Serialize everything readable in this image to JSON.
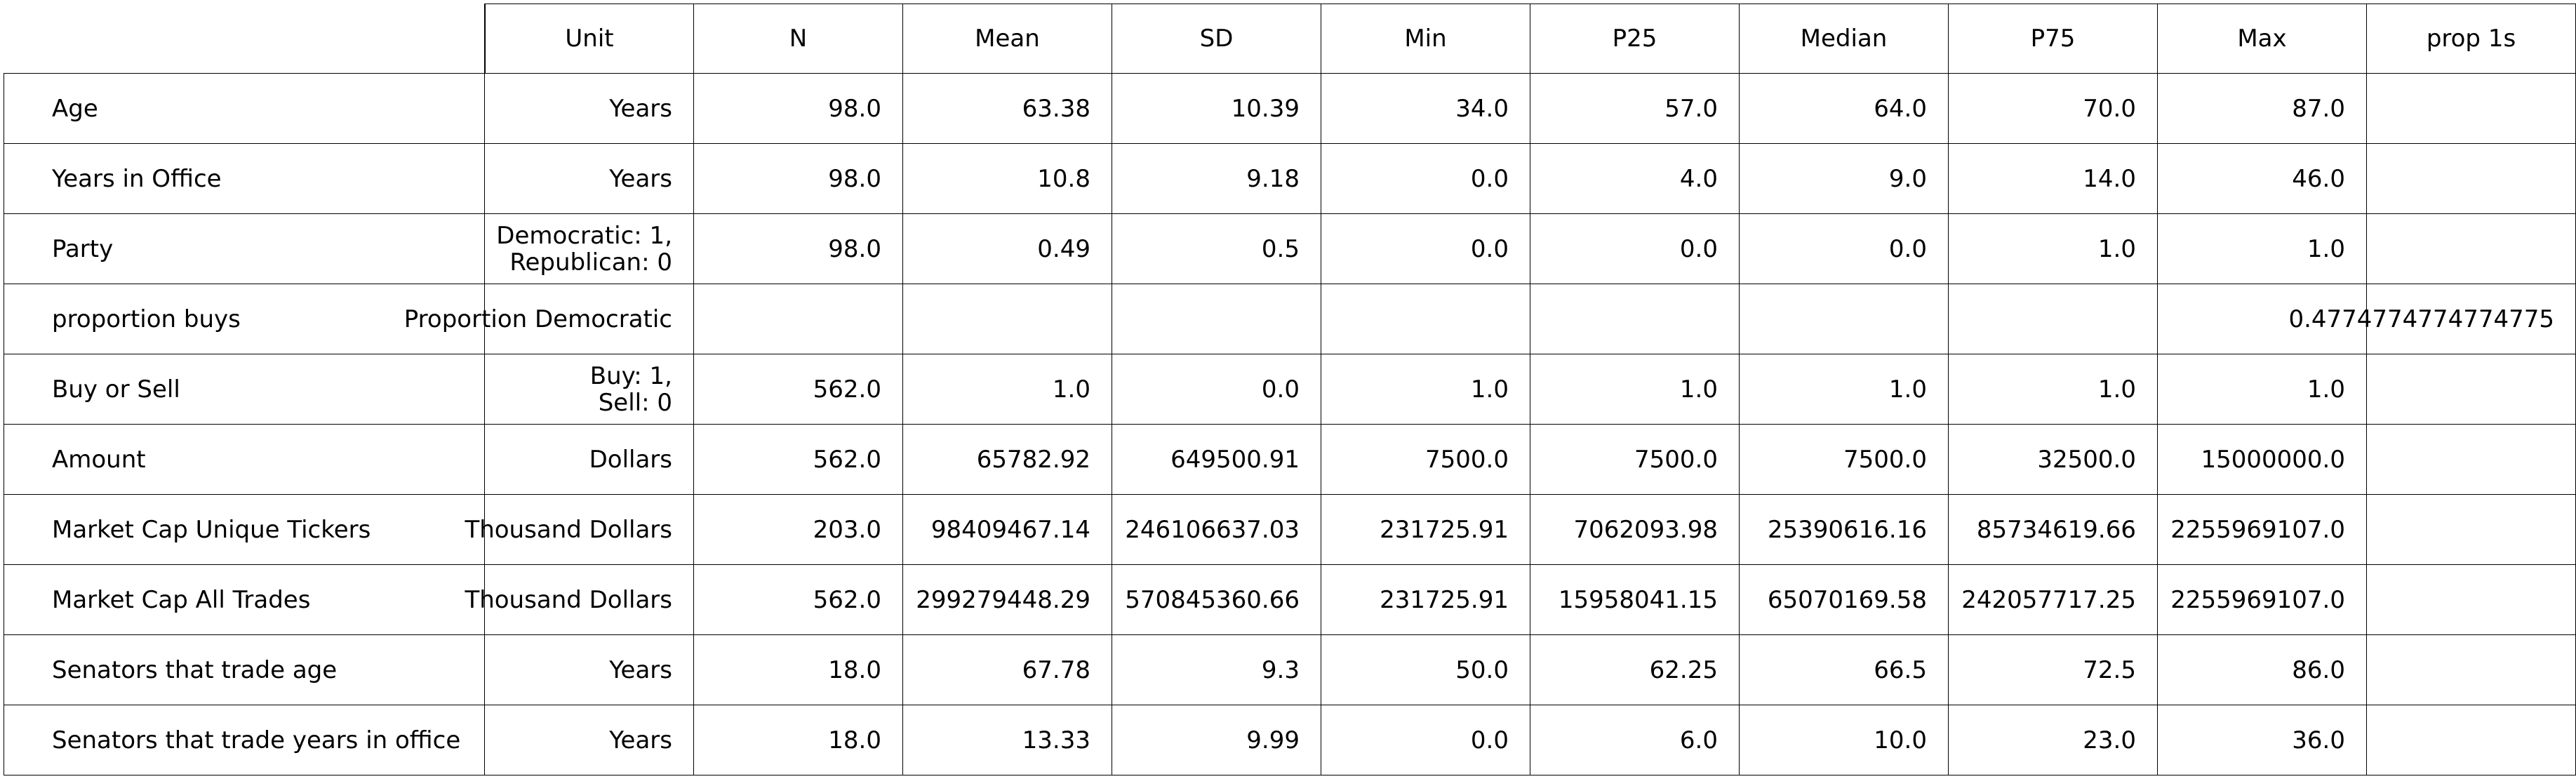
{
  "table": {
    "headers": [
      "Unit",
      "N",
      "Mean",
      "SD",
      "Min",
      "P25",
      "Median",
      "P75",
      "Max",
      "prop 1s"
    ],
    "rows": [
      {
        "label": "Age",
        "unit": "Years",
        "values": [
          "98.0",
          "63.38",
          "10.39",
          "34.0",
          "57.0",
          "64.0",
          "70.0",
          "87.0",
          ""
        ]
      },
      {
        "label": "Years in Office",
        "unit": "Years",
        "values": [
          "98.0",
          "10.8",
          "9.18",
          "0.0",
          "4.0",
          "9.0",
          "14.0",
          "46.0",
          ""
        ]
      },
      {
        "label": "Party",
        "unit": "Democratic: 1,\nRepublican: 0",
        "values": [
          "98.0",
          "0.49",
          "0.5",
          "0.0",
          "0.0",
          "0.0",
          "1.0",
          "1.0",
          ""
        ]
      },
      {
        "label": "proportion buys",
        "unit": "Proportion Democratic",
        "values": [
          "",
          "",
          "",
          "",
          "",
          "",
          "",
          "",
          "0.4774774774774775"
        ]
      },
      {
        "label": "Buy or Sell",
        "unit": "Buy: 1,\nSell: 0",
        "values": [
          "562.0",
          "1.0",
          "0.0",
          "1.0",
          "1.0",
          "1.0",
          "1.0",
          "1.0",
          ""
        ]
      },
      {
        "label": "Amount",
        "unit": "Dollars",
        "values": [
          "562.0",
          "65782.92",
          "649500.91",
          "7500.0",
          "7500.0",
          "7500.0",
          "32500.0",
          "15000000.0",
          ""
        ]
      },
      {
        "label": "Market Cap Unique Tickers",
        "unit": "Thousand Dollars",
        "values": [
          "203.0",
          "98409467.14",
          "246106637.03",
          "231725.91",
          "7062093.98",
          "25390616.16",
          "85734619.66",
          "2255969107.0",
          ""
        ]
      },
      {
        "label": "Market Cap All Trades",
        "unit": "Thousand Dollars",
        "values": [
          "562.0",
          "299279448.29",
          "570845360.66",
          "231725.91",
          "15958041.15",
          "65070169.58",
          "242057717.25",
          "2255969107.0",
          ""
        ]
      },
      {
        "label": "Senators that trade age",
        "unit": "Years",
        "values": [
          "18.0",
          "67.78",
          "9.3",
          "50.0",
          "62.25",
          "66.5",
          "72.5",
          "86.0",
          ""
        ]
      },
      {
        "label": "Senators that trade years in office",
        "unit": "Years",
        "values": [
          "18.0",
          "13.33",
          "9.99",
          "0.0",
          "6.0",
          "10.0",
          "23.0",
          "36.0",
          ""
        ]
      }
    ]
  }
}
